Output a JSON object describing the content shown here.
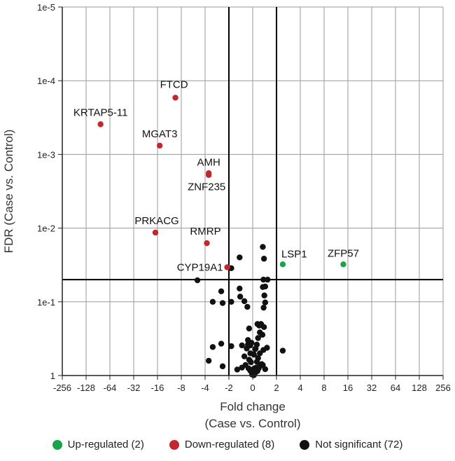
{
  "chart_data": {
    "type": "scatter",
    "title": "",
    "xlabel": [
      "Fold change",
      "(Case vs. Control)"
    ],
    "ylabel": "FDR (Case vs. Control)",
    "x_scale": "log2-symmetric (signed fold change)",
    "y_scale": "log10, reversed",
    "x_ticks": [
      "-256",
      "-128",
      "-64",
      "-32",
      "-16",
      "-8",
      "-4",
      "-2",
      "0",
      "2",
      "4",
      "8",
      "16",
      "32",
      "64",
      "128",
      "256"
    ],
    "y_ticks": [
      "1e-5",
      "1e-4",
      "1e-3",
      "1e-2",
      "1e-1",
      "1"
    ],
    "xlim": [
      -256,
      256
    ],
    "ylim_fdr": [
      1,
      1e-05
    ],
    "grid": true,
    "thresholds": {
      "fold_change": [
        -2,
        2
      ],
      "fdr": 0.05
    },
    "colors": {
      "up": "#1aa34a",
      "down": "#c1272d",
      "ns": "#111111"
    },
    "series": [
      {
        "name": "Up-regulated",
        "count": 2,
        "color": "#1aa34a",
        "points": [
          {
            "label": "LSP1",
            "fc": 2.4,
            "fdr": 0.031
          },
          {
            "label": "ZFP57",
            "fc": 14,
            "fdr": 0.031
          }
        ]
      },
      {
        "name": "Down-regulated",
        "count": 8,
        "color": "#c1272d",
        "points": [
          {
            "label": "FTCD",
            "fc": -9.5,
            "fdr": 0.00017
          },
          {
            "label": "KRTAP5-11",
            "fc": -84,
            "fdr": 0.00039
          },
          {
            "label": "MGAT3",
            "fc": -15,
            "fdr": 0.00076
          },
          {
            "label": "AMH",
            "fc": -3.6,
            "fdr": 0.0018
          },
          {
            "label": "ZNF235",
            "fc": -3.6,
            "fdr": 0.0019
          },
          {
            "label": "PRKACG",
            "fc": -17,
            "fdr": 0.0115
          },
          {
            "label": "RMRP",
            "fc": -3.8,
            "fdr": 0.016
          },
          {
            "label": "CYP19A1",
            "fc": -2.1,
            "fdr": 0.034
          }
        ]
      },
      {
        "name": "Not significant",
        "count": 72,
        "color": "#111111",
        "points": [
          {
            "fc": 0.85,
            "fdr": 0.018
          },
          {
            "fc": -1.1,
            "fdr": 0.025
          },
          {
            "fc": 0.95,
            "fdr": 0.026
          },
          {
            "fc": -1.8,
            "fdr": 0.035
          },
          {
            "fc": -5,
            "fdr": 0.051
          },
          {
            "fc": 0.9,
            "fdr": 0.05
          },
          {
            "fc": 1.25,
            "fdr": 0.05
          },
          {
            "fc": 1.05,
            "fdr": 0.062
          },
          {
            "fc": 0.85,
            "fdr": 0.063
          },
          {
            "fc": -1.1,
            "fdr": 0.066
          },
          {
            "fc": -2.5,
            "fdr": 0.072
          },
          {
            "fc": 0.98,
            "fdr": 0.082
          },
          {
            "fc": -1.05,
            "fdr": 0.085
          },
          {
            "fc": -3.2,
            "fdr": 0.1
          },
          {
            "fc": -2.4,
            "fdr": 0.104
          },
          {
            "fc": -1.8,
            "fdr": 0.1
          },
          {
            "fc": -0.7,
            "fdr": 0.098
          },
          {
            "fc": 1.05,
            "fdr": 0.102
          },
          {
            "fc": -0.45,
            "fdr": 0.117
          },
          {
            "fc": 0.92,
            "fdr": 0.12
          },
          {
            "fc": 0.4,
            "fdr": 0.2
          },
          {
            "fc": 0.55,
            "fdr": 0.21
          },
          {
            "fc": 0.7,
            "fdr": 0.2
          },
          {
            "fc": 0.95,
            "fdr": 0.22
          },
          {
            "fc": -0.3,
            "fdr": 0.23
          },
          {
            "fc": 0.6,
            "fdr": 0.26
          },
          {
            "fc": 0.82,
            "fdr": 0.28
          },
          {
            "fc": 0.45,
            "fdr": 0.31
          },
          {
            "fc": -0.4,
            "fdr": 0.33
          },
          {
            "fc": -2.5,
            "fdr": 0.37
          },
          {
            "fc": -0.4,
            "fdr": 0.38
          },
          {
            "fc": 0.35,
            "fdr": 0.38
          },
          {
            "fc": -0.1,
            "fdr": 0.36
          },
          {
            "fc": -0.2,
            "fdr": 0.39
          },
          {
            "fc": 0.25,
            "fdr": 0.43
          },
          {
            "fc": -3.2,
            "fdr": 0.41
          },
          {
            "fc": -1.8,
            "fdr": 0.4
          },
          {
            "fc": 0.2,
            "fdr": 0.44
          },
          {
            "fc": -0.9,
            "fdr": 0.39
          },
          {
            "fc": 1.2,
            "fdr": 0.42
          },
          {
            "fc": -0.5,
            "fdr": 0.43
          },
          {
            "fc": 0.9,
            "fdr": 0.45
          },
          {
            "fc": 0.6,
            "fdr": 0.5
          },
          {
            "fc": 2.4,
            "fdr": 0.46
          },
          {
            "fc": -0.2,
            "fdr": 0.5
          },
          {
            "fc": -0.7,
            "fdr": 0.55
          },
          {
            "fc": 0.1,
            "fdr": 0.52
          },
          {
            "fc": 0.45,
            "fdr": 0.58
          },
          {
            "fc": -3.6,
            "fdr": 0.63
          },
          {
            "fc": -0.3,
            "fdr": 0.61
          },
          {
            "fc": -0.15,
            "fdr": 0.66
          },
          {
            "fc": 0.35,
            "fdr": 0.65
          },
          {
            "fc": 0.75,
            "fdr": 0.7
          },
          {
            "fc": -2.4,
            "fdr": 0.75
          },
          {
            "fc": -0.6,
            "fdr": 0.72
          },
          {
            "fc": -0.9,
            "fdr": 0.78
          },
          {
            "fc": 0.3,
            "fdr": 0.78
          },
          {
            "fc": 0.5,
            "fdr": 0.8
          },
          {
            "fc": -0.35,
            "fdr": 0.8
          },
          {
            "fc": 0.15,
            "fdr": 0.8
          },
          {
            "fc": 0.6,
            "fdr": 0.75
          },
          {
            "fc": 1.05,
            "fdr": 0.82
          },
          {
            "fc": 0.85,
            "fdr": 0.72
          },
          {
            "fc": -1.3,
            "fdr": 0.83
          },
          {
            "fc": 0.05,
            "fdr": 0.82
          },
          {
            "fc": -0.08,
            "fdr": 0.9
          },
          {
            "fc": 0.02,
            "fdr": 0.93
          },
          {
            "fc": 0.2,
            "fdr": 0.92
          },
          {
            "fc": -0.2,
            "fdr": 0.86
          },
          {
            "fc": 0.4,
            "fdr": 0.87
          },
          {
            "fc": -0.05,
            "fdr": 0.97
          },
          {
            "fc": 0.1,
            "fdr": 0.99
          }
        ]
      }
    ],
    "legend": [
      {
        "label": "Up-regulated (2)",
        "color": "#1aa34a"
      },
      {
        "label": "Down-regulated (8)",
        "color": "#c1272d"
      },
      {
        "label": "Not significant (72)",
        "color": "#111111"
      }
    ]
  }
}
